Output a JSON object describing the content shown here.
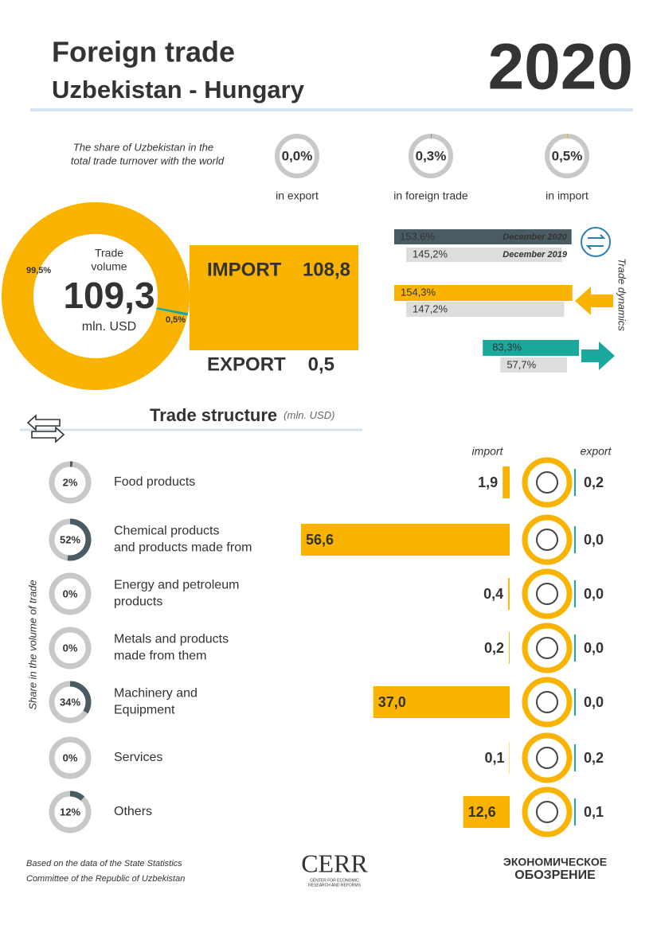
{
  "header": {
    "title_line1": "Foreign trade",
    "title_line2": "Uzbekistan -  Hungary",
    "year": "2020"
  },
  "share": {
    "caption_line1": "The share of Uzbekistan in the",
    "caption_line2": "total trade turnover with the world",
    "items": [
      {
        "value": 0.0,
        "label": "0,0%",
        "caption": "in export"
      },
      {
        "value": 0.3,
        "label": "0,3%",
        "caption": "in foreign trade"
      },
      {
        "value": 0.5,
        "label": "0,5%",
        "caption": "in import"
      }
    ]
  },
  "turnover": {
    "caption_line1": "Trade",
    "caption_line2": "volume",
    "total": "109,3",
    "unit": "mln. USD",
    "import_share": {
      "value": 99.5,
      "label": "99,5%"
    },
    "export_share": {
      "value": 0.5,
      "label": "0,5%"
    },
    "import_label": "IMPORT",
    "import_value": "108,8",
    "export_label": "EXPORT",
    "export_value": "0,5"
  },
  "dynamics": {
    "title": "Trade dynamics",
    "turnover": [
      {
        "value": 153.6,
        "label": "153,6%",
        "period": "December 2020"
      },
      {
        "value": 145.2,
        "label": "145,2%",
        "period": "December 2019"
      }
    ],
    "import": [
      {
        "value": 154.3,
        "label": "154,3%"
      },
      {
        "value": 147.2,
        "label": "147,2%"
      }
    ],
    "export": [
      {
        "value": 83.3,
        "label": "83,3%"
      },
      {
        "value": 57.7,
        "label": "57,7%"
      }
    ]
  },
  "structure": {
    "title": "Trade structure",
    "unit": "(mln. USD)",
    "import_header": "import",
    "export_header": "export",
    "side_label": "Share in the volume of trade",
    "rows": [
      {
        "name": [
          "Food products"
        ],
        "share": {
          "value": 2,
          "label": "2%"
        },
        "import": {
          "value": 1.9,
          "label": "1,9"
        },
        "export": {
          "value": 0.2,
          "label": "0,2"
        }
      },
      {
        "name": [
          "Chemical products",
          "and products made from"
        ],
        "share": {
          "value": 52,
          "label": "52%"
        },
        "import": {
          "value": 56.6,
          "label": "56,6"
        },
        "export": {
          "value": 0.0,
          "label": "0,0"
        }
      },
      {
        "name": [
          "Energy and petroleum",
          "products"
        ],
        "share": {
          "value": 0,
          "label": "0%"
        },
        "import": {
          "value": 0.4,
          "label": "0,4"
        },
        "export": {
          "value": 0.0,
          "label": "0,0"
        }
      },
      {
        "name": [
          "Metals and products",
          "made from them"
        ],
        "share": {
          "value": 0,
          "label": "0%"
        },
        "import": {
          "value": 0.2,
          "label": "0,2"
        },
        "export": {
          "value": 0.0,
          "label": "0,0"
        }
      },
      {
        "name": [
          "Machinery and",
          "Equipment"
        ],
        "share": {
          "value": 34,
          "label": "34%"
        },
        "import": {
          "value": 37.0,
          "label": "37,0"
        },
        "export": {
          "value": 0.0,
          "label": "0,0"
        }
      },
      {
        "name": [
          "Services"
        ],
        "share": {
          "value": 0,
          "label": "0%"
        },
        "import": {
          "value": 0.1,
          "label": "0,1"
        },
        "export": {
          "value": 0.2,
          "label": "0,2"
        }
      },
      {
        "name": [
          "Others"
        ],
        "share": {
          "value": 12,
          "label": "12%"
        },
        "import": {
          "value": 12.6,
          "label": "12,6"
        },
        "export": {
          "value": 0.1,
          "label": "0,1"
        }
      }
    ]
  },
  "footer": {
    "source_line1": "Based on the data of the State Statistics",
    "source_line2": "Committee of the Republic of Uzbekistan",
    "logo1": "CERR",
    "logo1_sub1": "CENTER FOR ECONOMIC",
    "logo1_sub2": "RESEARCH AND REFORMS",
    "logo2_line1": "ЭКОНОМИЧЕСКОЕ",
    "logo2_line2": "ОБОЗРЕНИЕ"
  }
}
